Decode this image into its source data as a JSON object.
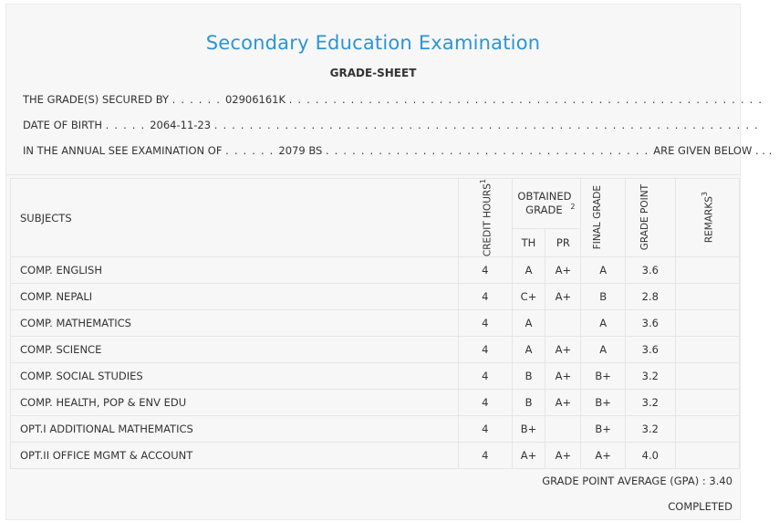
{
  "title": "Secondary Education Examination",
  "subtitle": "GRADE-SHEET",
  "info": {
    "secured_by_label": "THE GRADE(S) SECURED BY",
    "symbol_no": "02906161K",
    "dob_label": "DATE OF BIRTH",
    "dob": "2064-11-23",
    "exam_label": "IN THE ANNUAL SEE EXAMINATION OF",
    "exam_year": "2079 BS",
    "given_below": "ARE GIVEN BELOW . . ."
  },
  "headers": {
    "subjects": "SUBJECTS",
    "credit_hours": "CREDIT HOURS",
    "credit_sup": "1",
    "obtained_grade": "OBTAINED GRADE",
    "obtained_sup": "2",
    "th": "TH",
    "pr": "PR",
    "final_grade": "FINAL GRADE",
    "grade_point": "GRADE POINT",
    "remarks": "REMARKS",
    "remarks_sup": "3"
  },
  "rows": [
    {
      "subject": "COMP. ENGLISH",
      "credit": "4",
      "th": "A",
      "pr": "A+",
      "final": "A",
      "gp": "3.6",
      "remarks": ""
    },
    {
      "subject": "COMP. NEPALI",
      "credit": "4",
      "th": "C+",
      "pr": "A+",
      "final": "B",
      "gp": "2.8",
      "remarks": ""
    },
    {
      "subject": "COMP. MATHEMATICS",
      "credit": "4",
      "th": "A",
      "pr": "",
      "final": "A",
      "gp": "3.6",
      "remarks": ""
    },
    {
      "subject": "COMP. SCIENCE",
      "credit": "4",
      "th": "A",
      "pr": "A+",
      "final": "A",
      "gp": "3.6",
      "remarks": ""
    },
    {
      "subject": "COMP. SOCIAL STUDIES",
      "credit": "4",
      "th": "B",
      "pr": "A+",
      "final": "B+",
      "gp": "3.2",
      "remarks": ""
    },
    {
      "subject": "COMP. HEALTH, POP & ENV EDU",
      "credit": "4",
      "th": "B",
      "pr": "A+",
      "final": "B+",
      "gp": "3.2",
      "remarks": ""
    },
    {
      "subject": "OPT.I ADDITIONAL MATHEMATICS",
      "credit": "4",
      "th": "B+",
      "pr": "",
      "final": "B+",
      "gp": "3.2",
      "remarks": ""
    },
    {
      "subject": "OPT.II OFFICE MGMT & ACCOUNT",
      "credit": "4",
      "th": "A+",
      "pr": "A+",
      "final": "A+",
      "gp": "4.0",
      "remarks": ""
    }
  ],
  "footer": {
    "gpa": "GRADE POINT AVERAGE (GPA) : 3.40",
    "status": "COMPLETED"
  },
  "colors": {
    "title": "#2a95d8",
    "background": "#f7f7f7"
  }
}
